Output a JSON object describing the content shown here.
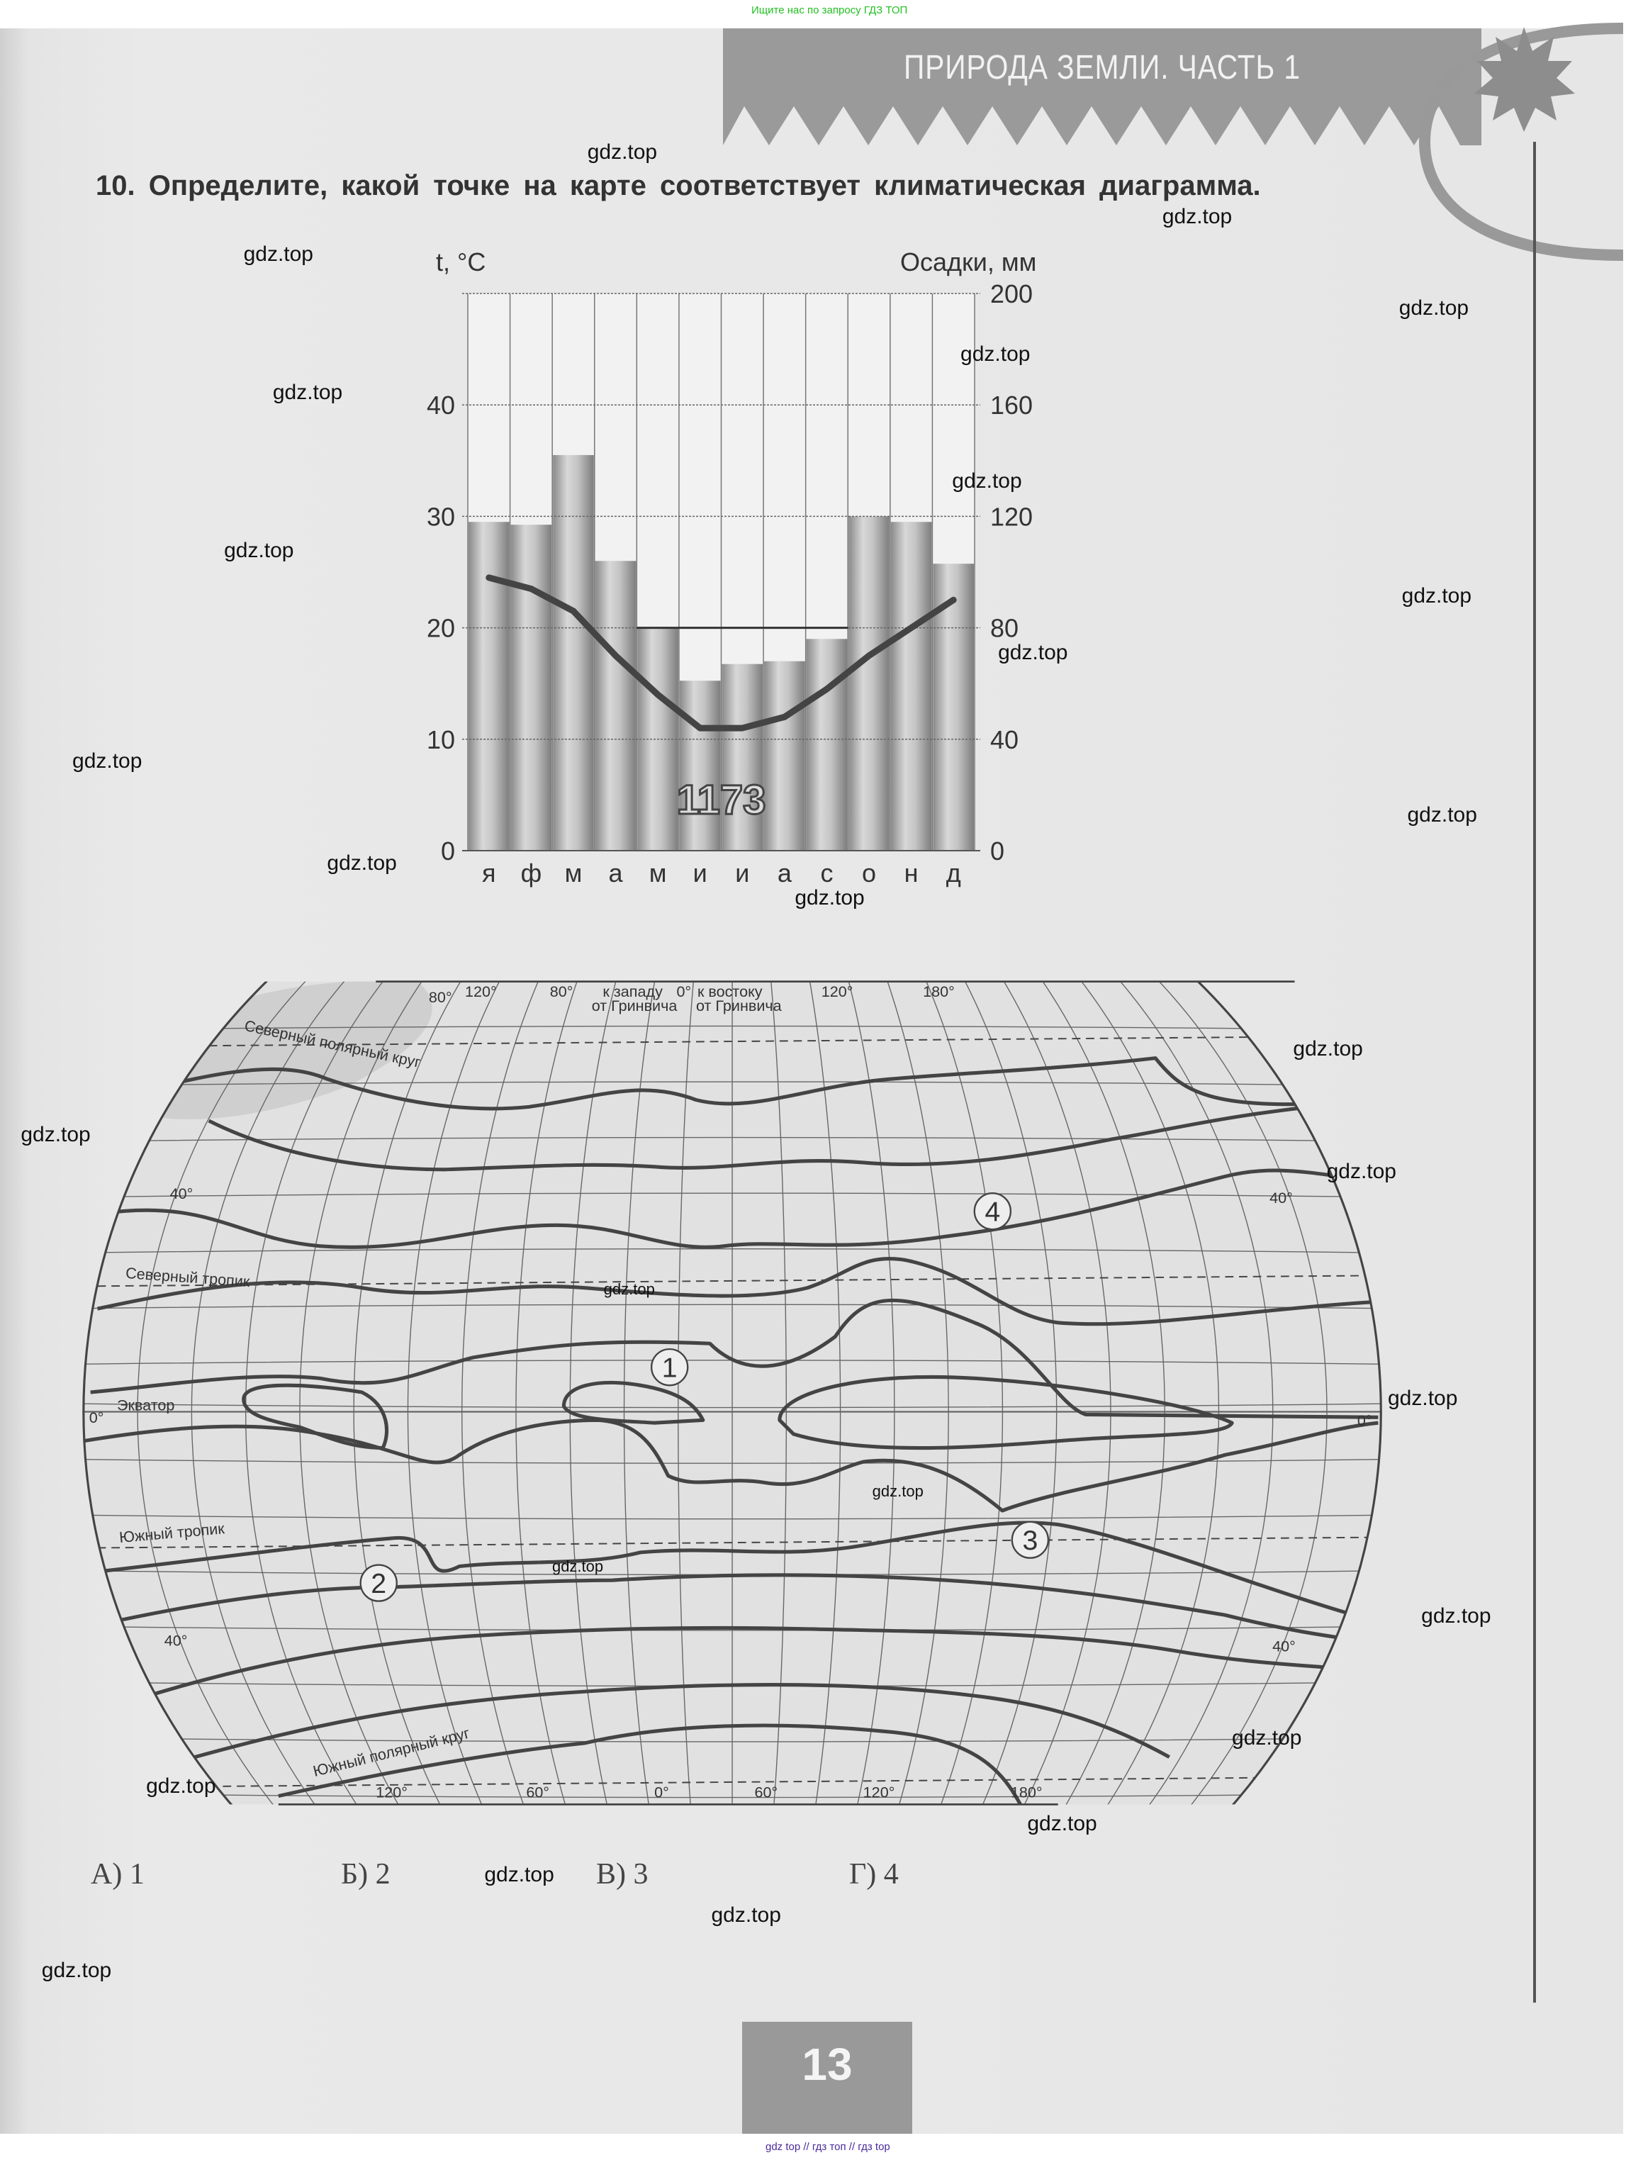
{
  "top_note": "Ищите нас по запросу ГДЗ ТОП",
  "header": {
    "title": "ПРИРОДА ЗЕМЛИ. ЧАСТЬ 1",
    "icon": "star-icon"
  },
  "question": "10. Определите, какой точке на карте соответствует климатическая диаграмма.",
  "chart_data": {
    "type": "bar+line",
    "left_axis_label": "t, °C",
    "right_axis_label": "Осадки, мм",
    "categories": [
      "я",
      "ф",
      "м",
      "а",
      "м",
      "и",
      "и",
      "а",
      "с",
      "о",
      "н",
      "д"
    ],
    "left_ticks": [
      "0",
      "10",
      "20",
      "30",
      "40"
    ],
    "right_ticks": [
      "0",
      "40",
      "80",
      "120",
      "160",
      "200"
    ],
    "temperature_range": [
      0,
      50
    ],
    "precipitation_range": [
      0,
      200
    ],
    "precipitation_mm": [
      118,
      117,
      142,
      104,
      80,
      61,
      67,
      68,
      76,
      120,
      118,
      103
    ],
    "temperature_c": [
      24.5,
      23.5,
      21.5,
      17.5,
      14,
      11,
      11,
      12,
      14.5,
      17.5,
      20,
      22.5
    ],
    "annual_total_label": "1173",
    "reference_line": {
      "precipitation_mm": 80,
      "from_month_index": 4,
      "to_month_index": 8
    },
    "grid": true
  },
  "map": {
    "top_labels": [
      "80°",
      "120°",
      "80°",
      "к западу",
      "от Гринвича",
      "0°",
      "к востоку",
      "от Гринвича",
      "120°",
      "180°"
    ],
    "bottom_labels": [
      "120°",
      "60°",
      "0°",
      "60°",
      "120°",
      "180°"
    ],
    "lat_labels": {
      "n40_left": "40°",
      "n40_right": "40°",
      "eq_left": "0°",
      "eq_right": "0°",
      "s40_left": "40°",
      "s40_right": "40°"
    },
    "lines": {
      "arctic": "Северный полярный круг",
      "tropic_n": "Северный тропик",
      "equator": "Экватор",
      "tropic_s": "Южный тропик",
      "antarctic": "Южный полярный круг"
    },
    "points": [
      "1",
      "2",
      "3",
      "4"
    ]
  },
  "answers": [
    {
      "letter": "А)",
      "value": "1"
    },
    {
      "letter": "Б)",
      "value": "2"
    },
    {
      "letter": "В)",
      "value": "3"
    },
    {
      "letter": "Г)",
      "value": "4"
    }
  ],
  "page_number": "13",
  "footer": "gdz top // гдз топ // гдз top",
  "watermarks": [
    "gdz.top",
    "gdz.top",
    "gdz.top",
    "gdz.top",
    "gdz.top",
    "gdz.top",
    "gdz.top",
    "gdz.top",
    "gdz.top",
    "gdz.top",
    "gdz.top",
    "gdz.top",
    "gdz.top",
    "gdz.top",
    "gdz.top",
    "gdz.top",
    "gdz.top",
    "gdz.top",
    "gdz.top",
    "gdz.top",
    "gdz.top",
    "gdz.top",
    "gdz.top",
    "gdz.top",
    "gdz.top",
    "gdz.top",
    "gdz.top",
    "gdz.top"
  ]
}
